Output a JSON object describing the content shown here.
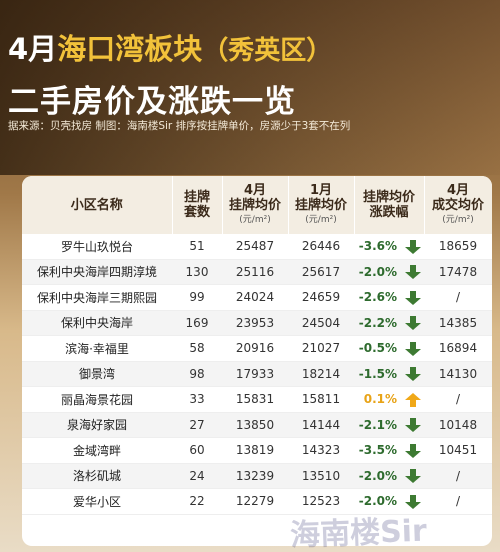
{
  "header": {
    "title": {
      "month": "4月",
      "area": "海口湾板块",
      "district": "（秀英区）"
    },
    "subtitle": "二手房价及涨跌一览",
    "source": "据来源：贝壳找房 制图：海南楼Sir  排序按挂牌单价，房源少于3套不在列"
  },
  "watermark": "海南楼Sir",
  "table": {
    "columns": [
      {
        "lines": [
          "小区名称"
        ]
      },
      {
        "lines": [
          "挂牌",
          "套数"
        ]
      },
      {
        "lines": [
          "4月",
          "挂牌均价"
        ],
        "unit": "(元/m²)"
      },
      {
        "lines": [
          "1月",
          "挂牌均价"
        ],
        "unit": "(元/m²)"
      },
      {
        "lines": [
          "挂牌均价",
          "涨跌幅"
        ]
      },
      {
        "lines": [
          "4月",
          "成交均价"
        ],
        "unit": "(元/m²)"
      }
    ],
    "rows": [
      [
        "罗牛山玖悦台",
        "51",
        "25487",
        "26446",
        "-3.6%",
        "18659"
      ],
      [
        "保利中央海岸四期淳境",
        "130",
        "25116",
        "25617",
        "-2.0%",
        "17478"
      ],
      [
        "保利中央海岸三期熙园",
        "99",
        "24024",
        "24659",
        "-2.6%",
        "/"
      ],
      [
        "保利中央海岸",
        "169",
        "23953",
        "24504",
        "-2.2%",
        "14385"
      ],
      [
        "滨海·幸福里",
        "58",
        "20916",
        "21027",
        "-0.5%",
        "16894"
      ],
      [
        "御景湾",
        "98",
        "17933",
        "18214",
        "-1.5%",
        "14130"
      ],
      [
        "丽晶海景花园",
        "33",
        "15831",
        "15811",
        "0.1%",
        "/"
      ],
      [
        "泉海好家园",
        "27",
        "13850",
        "14144",
        "-2.1%",
        "10148"
      ],
      [
        "金域湾畔",
        "60",
        "13819",
        "14323",
        "-3.5%",
        "10451"
      ],
      [
        "洛杉矶城",
        "24",
        "13239",
        "13510",
        "-2.0%",
        "/"
      ],
      [
        "爱华小区",
        "22",
        "12279",
        "12523",
        "-2.0%",
        "/"
      ]
    ]
  }
}
